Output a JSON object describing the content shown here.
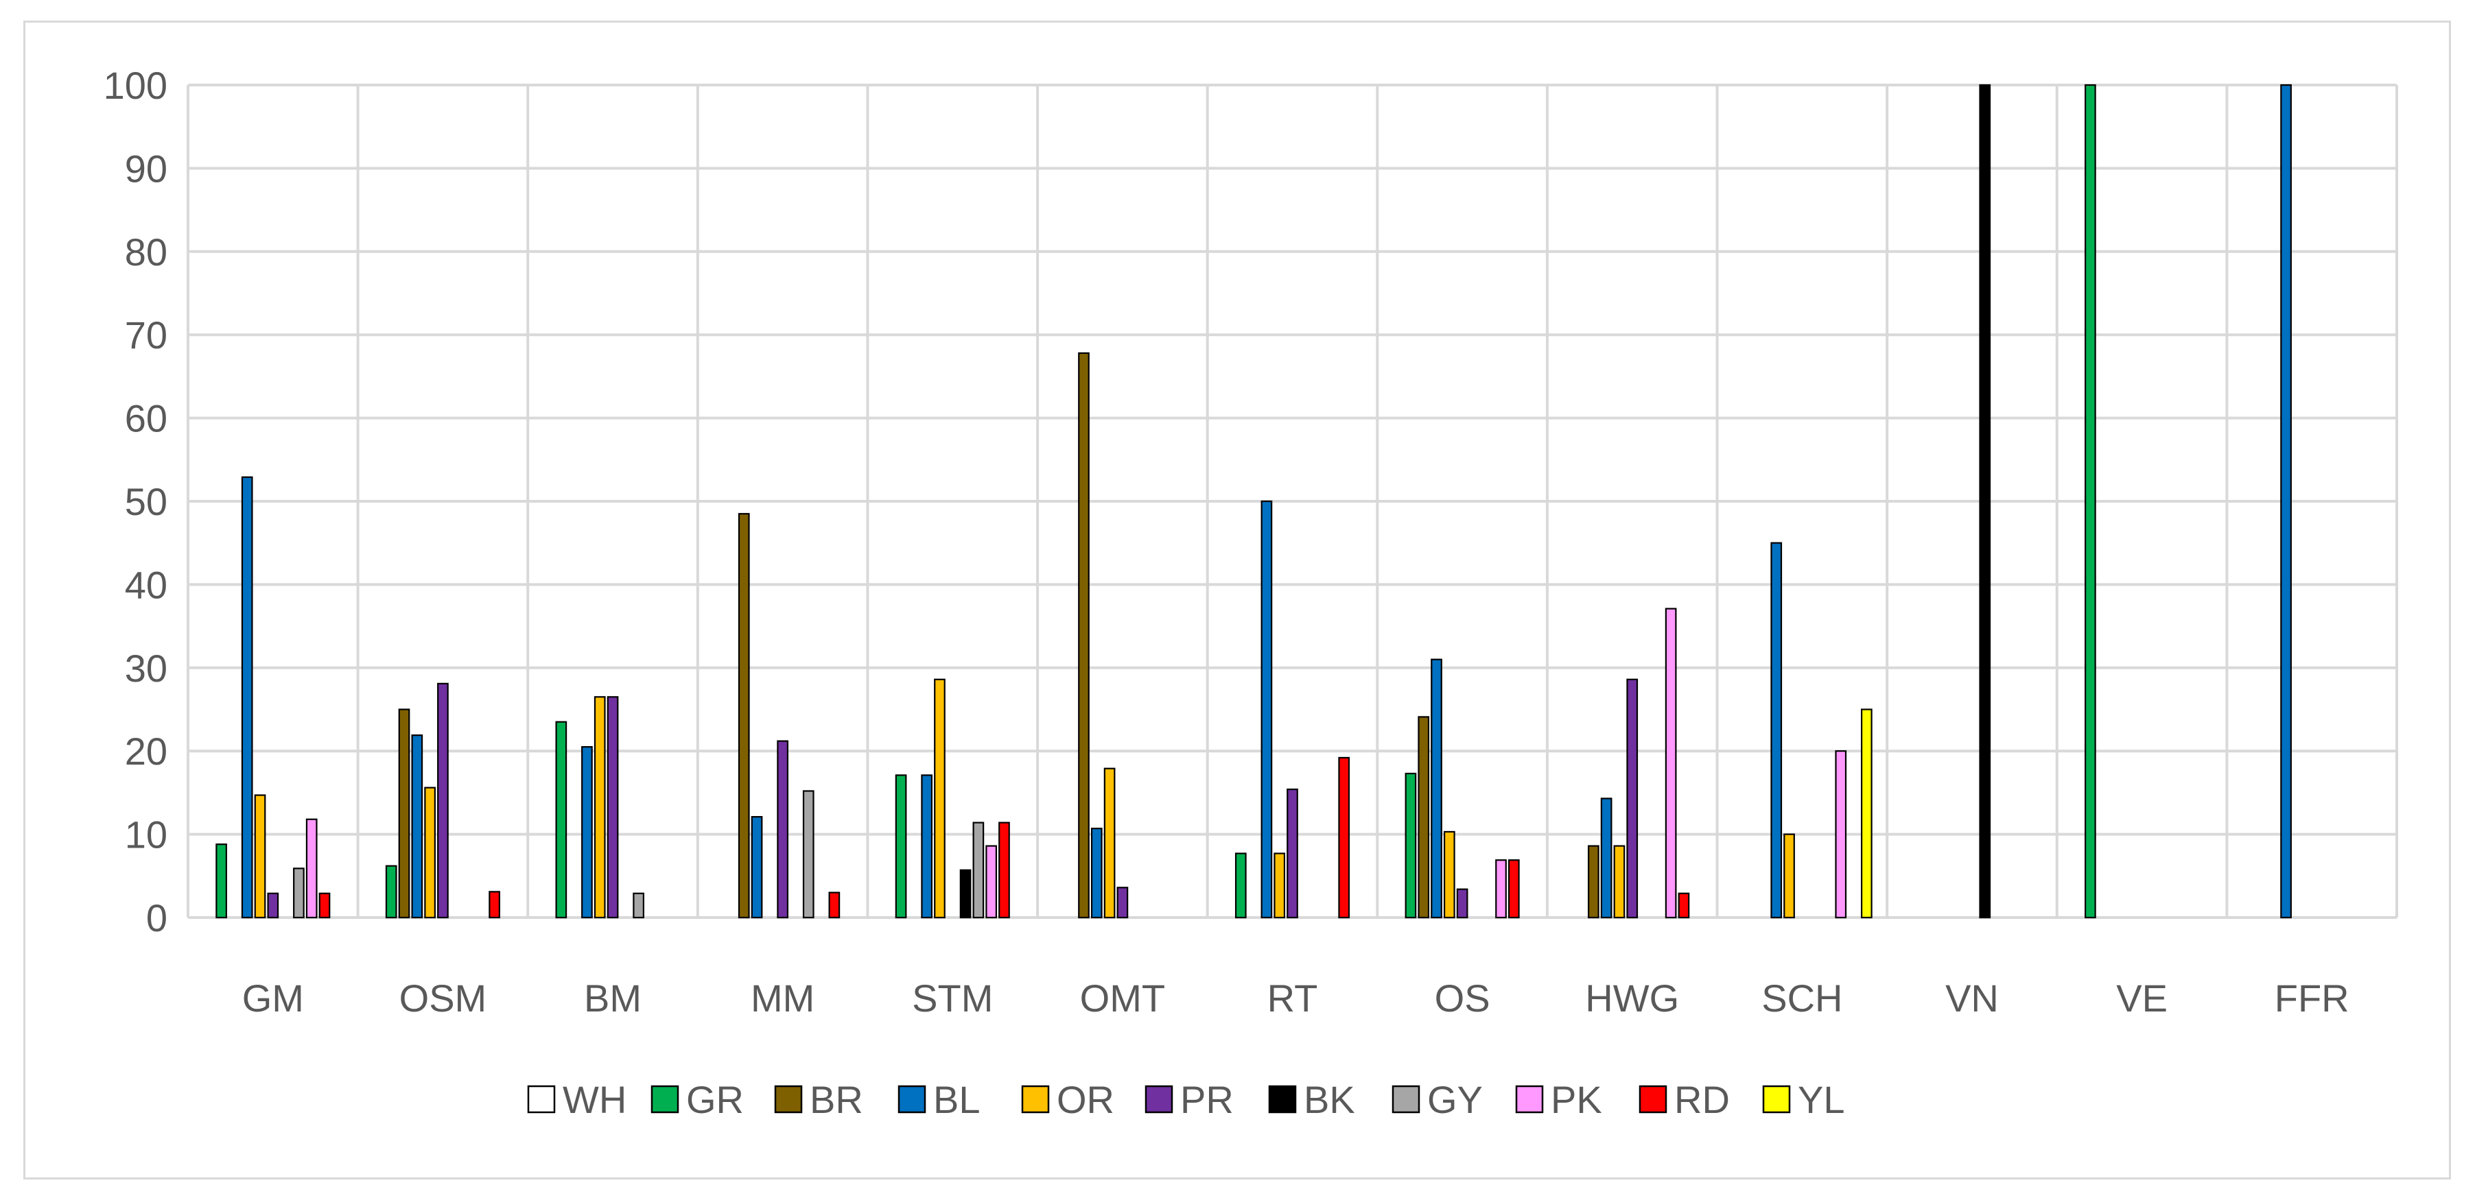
{
  "chart_data": {
    "type": "bar",
    "categories": [
      "GM",
      "OSM",
      "BM",
      "MM",
      "STM",
      "OMT",
      "RT",
      "OS",
      "HWG",
      "SCH",
      "VN",
      "VE",
      "FFR"
    ],
    "ylim": [
      0,
      100
    ],
    "yticks": [
      0,
      10,
      20,
      30,
      40,
      50,
      60,
      70,
      80,
      90,
      100
    ],
    "grid": true,
    "legend_position": "bottom",
    "series": [
      {
        "name": "WH",
        "color": "#ffffff",
        "values": [
          0,
          0,
          0,
          0,
          0,
          0,
          0,
          0,
          0,
          0,
          0,
          0,
          0
        ]
      },
      {
        "name": "GR",
        "color": "#00b050",
        "values": [
          8.8,
          6.2,
          23.5,
          0,
          17.1,
          0,
          7.7,
          17.3,
          0,
          0,
          0,
          100,
          0
        ]
      },
      {
        "name": "BR",
        "color": "#7f6000",
        "values": [
          0,
          25.0,
          0,
          48.5,
          0,
          67.8,
          0,
          24.1,
          8.6,
          0,
          0,
          0,
          0
        ]
      },
      {
        "name": "BL",
        "color": "#0070c0",
        "values": [
          52.9,
          21.9,
          20.5,
          12.1,
          17.1,
          10.7,
          50.0,
          31.0,
          14.3,
          45.0,
          0,
          0,
          100
        ]
      },
      {
        "name": "OR",
        "color": "#ffc000",
        "values": [
          14.7,
          15.6,
          26.5,
          0,
          28.6,
          17.9,
          7.7,
          10.3,
          8.6,
          10.0,
          0,
          0,
          0
        ]
      },
      {
        "name": "PR",
        "color": "#7030a0",
        "values": [
          2.9,
          28.1,
          26.5,
          21.2,
          0,
          3.6,
          15.4,
          3.4,
          28.6,
          0,
          0,
          0,
          0
        ]
      },
      {
        "name": "BK",
        "color": "#000000",
        "values": [
          0,
          0,
          0,
          0,
          5.7,
          0,
          0,
          0,
          0,
          0,
          100,
          0,
          0
        ]
      },
      {
        "name": "GY",
        "color": "#a6a6a6",
        "values": [
          5.9,
          0,
          2.9,
          15.2,
          11.4,
          0,
          0,
          0,
          0,
          0,
          0,
          0,
          0
        ]
      },
      {
        "name": "PK",
        "color": "#ff99ff",
        "values": [
          11.8,
          0,
          0,
          0,
          8.6,
          0,
          0,
          6.9,
          37.1,
          20.0,
          0,
          0,
          0
        ]
      },
      {
        "name": "RD",
        "color": "#ff0000",
        "values": [
          2.9,
          3.1,
          0,
          3.0,
          11.4,
          0,
          19.2,
          6.9,
          2.9,
          0,
          0,
          0,
          0
        ]
      },
      {
        "name": "YL",
        "color": "#ffff00",
        "values": [
          0,
          0,
          0,
          0,
          0,
          0,
          0,
          0,
          0,
          25.0,
          0,
          0,
          0
        ]
      }
    ],
    "colors": {
      "grid": "#d9d9d9",
      "text": "#595959",
      "bar_outline": "#000000"
    }
  }
}
